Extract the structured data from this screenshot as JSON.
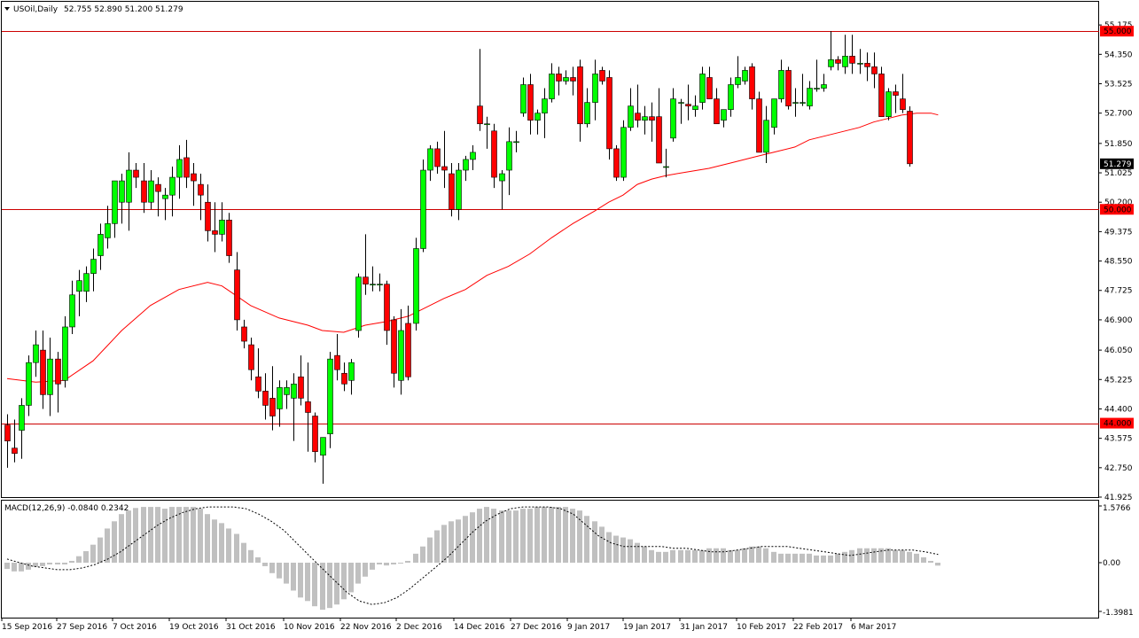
{
  "header": {
    "symbol_label": "USOil,Daily",
    "ohlc_label": "52.755 52.890 51.200 51.279"
  },
  "macd": {
    "label": "MACD(12,26,9) -0.0840 0.2342",
    "axis_labels": [
      "1.5766",
      "0.00",
      "-1.3981"
    ],
    "ylim": [
      -1.3981,
      1.5766
    ]
  },
  "colors": {
    "bull": "#00ff00",
    "bear": "#ff0000",
    "wick": "#000000",
    "ma": "#ff0000",
    "level_line": "#cc0000",
    "hist": "#c0c0c0",
    "signal": "#000000"
  },
  "chart_data": {
    "type": "candlestick",
    "timeframe": "Daily",
    "symbol": "USOil",
    "ylim": [
      41.925,
      55.825
    ],
    "y_ticks": [
      "55.175",
      "54.350",
      "53.525",
      "52.700",
      "51.850",
      "51.025",
      "50.200",
      "49.375",
      "48.550",
      "47.725",
      "46.900",
      "46.050",
      "45.225",
      "44.400",
      "43.575",
      "42.750",
      "41.925"
    ],
    "x_ticks": [
      "15 Sep 2016",
      "27 Sep 2016",
      "7 Oct 2016",
      "19 Oct 2016",
      "31 Oct 2016",
      "10 Nov 2016",
      "22 Nov 2016",
      "2 Dec 2016",
      "14 Dec 2016",
      "27 Dec 2016",
      "9 Jan 2017",
      "19 Jan 2017",
      "31 Jan 2017",
      "10 Feb 2017",
      "22 Feb 2017",
      "6 Mar 2017"
    ],
    "levels": [
      {
        "value": 55.0,
        "label": "55.000"
      },
      {
        "value": 50.0,
        "label": "50.000"
      },
      {
        "value": 44.0,
        "label": "44.000"
      }
    ],
    "last_price": {
      "value": 51.279,
      "label": "51.279"
    },
    "candles": [
      {
        "o": 43.95,
        "h": 44.25,
        "l": 42.75,
        "c": 43.5
      },
      {
        "o": 43.3,
        "h": 44.1,
        "l": 42.9,
        "c": 43.15
      },
      {
        "o": 43.8,
        "h": 44.7,
        "l": 43.0,
        "c": 44.5
      },
      {
        "o": 44.5,
        "h": 45.9,
        "l": 44.2,
        "c": 45.7
      },
      {
        "o": 45.7,
        "h": 46.6,
        "l": 45.3,
        "c": 46.2
      },
      {
        "o": 46.05,
        "h": 46.6,
        "l": 44.4,
        "c": 44.8
      },
      {
        "o": 44.8,
        "h": 46.4,
        "l": 44.2,
        "c": 45.8
      },
      {
        "o": 45.8,
        "h": 46.0,
        "l": 44.3,
        "c": 45.1
      },
      {
        "o": 45.2,
        "h": 47.0,
        "l": 45.0,
        "c": 46.7
      },
      {
        "o": 46.7,
        "h": 48.0,
        "l": 46.5,
        "c": 47.6
      },
      {
        "o": 47.7,
        "h": 48.3,
        "l": 47.0,
        "c": 48.0
      },
      {
        "o": 47.7,
        "h": 48.4,
        "l": 47.4,
        "c": 48.2
      },
      {
        "o": 48.2,
        "h": 48.9,
        "l": 47.7,
        "c": 48.6
      },
      {
        "o": 48.7,
        "h": 49.6,
        "l": 48.3,
        "c": 49.3
      },
      {
        "o": 49.2,
        "h": 50.1,
        "l": 48.9,
        "c": 49.6
      },
      {
        "o": 49.6,
        "h": 50.8,
        "l": 49.2,
        "c": 50.8
      },
      {
        "o": 50.2,
        "h": 51.0,
        "l": 49.6,
        "c": 50.8
      },
      {
        "o": 50.2,
        "h": 51.6,
        "l": 49.4,
        "c": 51.1
      },
      {
        "o": 51.1,
        "h": 51.3,
        "l": 50.6,
        "c": 50.9
      },
      {
        "o": 50.8,
        "h": 51.3,
        "l": 49.9,
        "c": 50.2
      },
      {
        "o": 50.2,
        "h": 51.1,
        "l": 50.0,
        "c": 50.8
      },
      {
        "o": 50.7,
        "h": 50.9,
        "l": 49.8,
        "c": 50.5
      },
      {
        "o": 50.3,
        "h": 50.6,
        "l": 49.7,
        "c": 50.4
      },
      {
        "o": 50.4,
        "h": 51.2,
        "l": 49.8,
        "c": 50.9
      },
      {
        "o": 50.9,
        "h": 51.8,
        "l": 50.3,
        "c": 51.4
      },
      {
        "o": 51.45,
        "h": 51.95,
        "l": 50.6,
        "c": 50.9
      },
      {
        "o": 51.0,
        "h": 51.3,
        "l": 50.1,
        "c": 50.8
      },
      {
        "o": 50.7,
        "h": 51.0,
        "l": 49.7,
        "c": 50.4
      },
      {
        "o": 50.2,
        "h": 50.7,
        "l": 49.1,
        "c": 49.4
      },
      {
        "o": 49.4,
        "h": 50.2,
        "l": 48.8,
        "c": 49.3
      },
      {
        "o": 49.3,
        "h": 50.2,
        "l": 49.1,
        "c": 49.7
      },
      {
        "o": 49.7,
        "h": 49.9,
        "l": 48.5,
        "c": 48.7
      },
      {
        "o": 48.3,
        "h": 48.8,
        "l": 46.6,
        "c": 46.9
      },
      {
        "o": 46.7,
        "h": 46.9,
        "l": 46.1,
        "c": 46.3
      },
      {
        "o": 46.2,
        "h": 46.4,
        "l": 45.2,
        "c": 45.5
      },
      {
        "o": 45.3,
        "h": 46.1,
        "l": 44.7,
        "c": 44.9
      },
      {
        "o": 44.9,
        "h": 45.4,
        "l": 44.1,
        "c": 44.5
      },
      {
        "o": 44.7,
        "h": 45.6,
        "l": 43.8,
        "c": 44.2
      },
      {
        "o": 44.4,
        "h": 45.2,
        "l": 43.9,
        "c": 45.0
      },
      {
        "o": 44.8,
        "h": 45.2,
        "l": 44.4,
        "c": 45.0
      },
      {
        "o": 44.7,
        "h": 45.4,
        "l": 43.5,
        "c": 45.1
      },
      {
        "o": 45.3,
        "h": 45.9,
        "l": 44.5,
        "c": 44.7
      },
      {
        "o": 44.6,
        "h": 45.7,
        "l": 43.2,
        "c": 44.3
      },
      {
        "o": 44.2,
        "h": 44.3,
        "l": 42.9,
        "c": 43.2
      },
      {
        "o": 43.1,
        "h": 43.6,
        "l": 42.3,
        "c": 43.6
      },
      {
        "o": 43.7,
        "h": 46.0,
        "l": 43.3,
        "c": 45.8
      },
      {
        "o": 45.9,
        "h": 46.5,
        "l": 45.2,
        "c": 45.5
      },
      {
        "o": 45.4,
        "h": 45.7,
        "l": 44.9,
        "c": 45.1
      },
      {
        "o": 45.2,
        "h": 45.8,
        "l": 44.8,
        "c": 45.7
      },
      {
        "o": 46.6,
        "h": 48.2,
        "l": 46.4,
        "c": 48.1
      },
      {
        "o": 48.1,
        "h": 49.3,
        "l": 47.6,
        "c": 47.9
      },
      {
        "o": 47.9,
        "h": 48.4,
        "l": 47.7,
        "c": 47.9
      },
      {
        "o": 47.9,
        "h": 48.2,
        "l": 47.7,
        "c": 47.9
      },
      {
        "o": 47.9,
        "h": 48.0,
        "l": 46.2,
        "c": 46.6
      },
      {
        "o": 46.9,
        "h": 47.0,
        "l": 45.0,
        "c": 45.4
      },
      {
        "o": 45.2,
        "h": 47.2,
        "l": 44.8,
        "c": 46.6
      },
      {
        "o": 46.8,
        "h": 47.3,
        "l": 45.2,
        "c": 45.3
      },
      {
        "o": 46.8,
        "h": 49.2,
        "l": 46.6,
        "c": 48.9
      },
      {
        "o": 48.9,
        "h": 51.4,
        "l": 48.8,
        "c": 51.1
      },
      {
        "o": 51.1,
        "h": 51.8,
        "l": 50.8,
        "c": 51.7
      },
      {
        "o": 51.7,
        "h": 51.9,
        "l": 51.0,
        "c": 51.2
      },
      {
        "o": 51.2,
        "h": 52.2,
        "l": 50.6,
        "c": 51.1
      },
      {
        "o": 51.0,
        "h": 51.3,
        "l": 49.8,
        "c": 50.0
      },
      {
        "o": 50.0,
        "h": 51.3,
        "l": 49.7,
        "c": 51.1
      },
      {
        "o": 51.1,
        "h": 51.5,
        "l": 50.8,
        "c": 51.4
      },
      {
        "o": 51.4,
        "h": 51.8,
        "l": 51.1,
        "c": 51.6
      },
      {
        "o": 52.9,
        "h": 54.5,
        "l": 52.2,
        "c": 52.4
      },
      {
        "o": 52.4,
        "h": 52.6,
        "l": 51.7,
        "c": 52.4
      },
      {
        "o": 52.2,
        "h": 52.4,
        "l": 50.6,
        "c": 50.9
      },
      {
        "o": 50.8,
        "h": 51.1,
        "l": 50.0,
        "c": 51.0
      },
      {
        "o": 51.1,
        "h": 52.3,
        "l": 50.4,
        "c": 51.9
      },
      {
        "o": 51.9,
        "h": 52.2,
        "l": 51.6,
        "c": 51.9
      },
      {
        "o": 52.7,
        "h": 53.7,
        "l": 52.6,
        "c": 53.5
      },
      {
        "o": 53.5,
        "h": 53.8,
        "l": 52.1,
        "c": 52.5
      },
      {
        "o": 52.5,
        "h": 52.8,
        "l": 52.1,
        "c": 52.7
      },
      {
        "o": 52.7,
        "h": 53.4,
        "l": 52.0,
        "c": 53.1
      },
      {
        "o": 53.1,
        "h": 54.1,
        "l": 53.0,
        "c": 53.8
      },
      {
        "o": 53.8,
        "h": 54.0,
        "l": 53.2,
        "c": 53.6
      },
      {
        "o": 53.6,
        "h": 53.9,
        "l": 53.5,
        "c": 53.7
      },
      {
        "o": 53.7,
        "h": 54.0,
        "l": 53.2,
        "c": 53.6
      },
      {
        "o": 54.0,
        "h": 54.2,
        "l": 51.9,
        "c": 52.4
      },
      {
        "o": 52.4,
        "h": 53.4,
        "l": 52.3,
        "c": 53.0
      },
      {
        "o": 53.0,
        "h": 54.2,
        "l": 52.5,
        "c": 53.8
      },
      {
        "o": 53.9,
        "h": 54.0,
        "l": 53.5,
        "c": 53.6
      },
      {
        "o": 53.7,
        "h": 53.9,
        "l": 51.4,
        "c": 51.7
      },
      {
        "o": 51.7,
        "h": 51.8,
        "l": 50.8,
        "c": 50.9
      },
      {
        "o": 50.9,
        "h": 52.5,
        "l": 50.8,
        "c": 52.3
      },
      {
        "o": 52.3,
        "h": 53.4,
        "l": 52.2,
        "c": 52.9
      },
      {
        "o": 52.7,
        "h": 53.5,
        "l": 52.3,
        "c": 52.5
      },
      {
        "o": 52.5,
        "h": 52.9,
        "l": 52.1,
        "c": 52.6
      },
      {
        "o": 52.6,
        "h": 53.0,
        "l": 51.9,
        "c": 52.5
      },
      {
        "o": 52.6,
        "h": 53.4,
        "l": 51.3,
        "c": 51.3
      },
      {
        "o": 51.2,
        "h": 51.7,
        "l": 50.9,
        "c": 51.2
      },
      {
        "o": 52.0,
        "h": 53.4,
        "l": 51.9,
        "c": 53.1
      },
      {
        "o": 53.0,
        "h": 53.1,
        "l": 52.4,
        "c": 53.0
      },
      {
        "o": 52.95,
        "h": 53.5,
        "l": 52.5,
        "c": 52.9
      },
      {
        "o": 52.8,
        "h": 53.2,
        "l": 52.6,
        "c": 52.9
      },
      {
        "o": 53.0,
        "h": 54.0,
        "l": 52.8,
        "c": 53.8
      },
      {
        "o": 53.7,
        "h": 54.0,
        "l": 53.1,
        "c": 53.1
      },
      {
        "o": 53.1,
        "h": 53.4,
        "l": 52.4,
        "c": 52.4
      },
      {
        "o": 52.5,
        "h": 52.8,
        "l": 52.3,
        "c": 52.8
      },
      {
        "o": 52.8,
        "h": 53.7,
        "l": 52.6,
        "c": 53.5
      },
      {
        "o": 53.5,
        "h": 54.3,
        "l": 53.4,
        "c": 53.7
      },
      {
        "o": 53.6,
        "h": 54.0,
        "l": 53.5,
        "c": 53.9
      },
      {
        "o": 54.0,
        "h": 54.1,
        "l": 52.8,
        "c": 53.1
      },
      {
        "o": 53.1,
        "h": 53.3,
        "l": 51.6,
        "c": 51.6
      },
      {
        "o": 51.6,
        "h": 52.9,
        "l": 51.3,
        "c": 52.5
      },
      {
        "o": 52.3,
        "h": 53.1,
        "l": 52.1,
        "c": 53.1
      },
      {
        "o": 53.1,
        "h": 54.2,
        "l": 53.0,
        "c": 53.9
      },
      {
        "o": 53.9,
        "h": 54.0,
        "l": 52.8,
        "c": 52.9
      },
      {
        "o": 53.0,
        "h": 53.4,
        "l": 52.6,
        "c": 53.0
      },
      {
        "o": 53.0,
        "h": 53.8,
        "l": 52.9,
        "c": 53.0
      },
      {
        "o": 52.9,
        "h": 53.6,
        "l": 52.8,
        "c": 53.4
      },
      {
        "o": 53.4,
        "h": 54.2,
        "l": 53.3,
        "c": 53.4
      },
      {
        "o": 53.4,
        "h": 53.8,
        "l": 53.3,
        "c": 53.5
      },
      {
        "o": 54.0,
        "h": 55.0,
        "l": 53.9,
        "c": 54.2
      },
      {
        "o": 54.2,
        "h": 54.3,
        "l": 53.9,
        "c": 54.1
      },
      {
        "o": 54.0,
        "h": 54.9,
        "l": 53.8,
        "c": 54.3
      },
      {
        "o": 54.3,
        "h": 54.9,
        "l": 53.8,
        "c": 54.1
      },
      {
        "o": 54.1,
        "h": 54.5,
        "l": 53.8,
        "c": 54.1
      },
      {
        "o": 54.1,
        "h": 54.4,
        "l": 53.6,
        "c": 54.0
      },
      {
        "o": 54.0,
        "h": 54.4,
        "l": 53.4,
        "c": 53.8
      },
      {
        "o": 53.8,
        "h": 54.0,
        "l": 52.6,
        "c": 52.6
      },
      {
        "o": 52.6,
        "h": 53.4,
        "l": 52.5,
        "c": 53.3
      },
      {
        "o": 53.3,
        "h": 53.5,
        "l": 52.7,
        "c": 53.2
      },
      {
        "o": 53.1,
        "h": 53.8,
        "l": 52.7,
        "c": 52.8
      },
      {
        "o": 52.755,
        "h": 52.89,
        "l": 51.2,
        "c": 51.279
      }
    ],
    "ma": {
      "period_label": "",
      "points": [
        [
          0,
          45.25
        ],
        [
          4,
          45.15
        ],
        [
          8,
          45.2
        ],
        [
          12,
          45.75
        ],
        [
          16,
          46.6
        ],
        [
          20,
          47.3
        ],
        [
          24,
          47.75
        ],
        [
          28,
          47.95
        ],
        [
          30,
          47.85
        ],
        [
          34,
          47.3
        ],
        [
          38,
          46.95
        ],
        [
          42,
          46.75
        ],
        [
          44,
          46.6
        ],
        [
          47,
          46.55
        ],
        [
          50,
          46.75
        ],
        [
          53,
          46.85
        ],
        [
          56,
          47.0
        ],
        [
          58,
          47.2
        ],
        [
          61,
          47.5
        ],
        [
          64,
          47.75
        ],
        [
          67,
          48.15
        ],
        [
          70,
          48.4
        ],
        [
          73,
          48.75
        ],
        [
          76,
          49.2
        ],
        [
          79,
          49.6
        ],
        [
          82,
          49.95
        ],
        [
          84,
          50.2
        ],
        [
          86,
          50.4
        ],
        [
          88,
          50.7
        ],
        [
          90,
          50.85
        ],
        [
          92,
          50.95
        ],
        [
          95,
          51.05
        ],
        [
          98,
          51.15
        ],
        [
          101,
          51.3
        ],
        [
          104,
          51.45
        ],
        [
          107,
          51.6
        ],
        [
          110,
          51.75
        ],
        [
          112,
          51.95
        ],
        [
          114,
          52.05
        ],
        [
          117,
          52.2
        ],
        [
          119,
          52.3
        ],
        [
          121,
          52.45
        ],
        [
          123,
          52.55
        ],
        [
          125,
          52.65
        ],
        [
          127,
          52.7
        ],
        [
          129,
          52.7
        ],
        [
          130,
          52.65
        ]
      ]
    },
    "macd": {
      "hist": [
        -0.18,
        -0.25,
        -0.25,
        -0.2,
        -0.12,
        -0.1,
        -0.05,
        -0.05,
        -0.05,
        0.05,
        0.18,
        0.32,
        0.5,
        0.7,
        0.95,
        1.15,
        1.35,
        1.45,
        1.52,
        1.55,
        1.55,
        1.55,
        1.5,
        1.55,
        1.55,
        1.55,
        1.55,
        1.5,
        1.35,
        1.2,
        1.1,
        0.95,
        0.8,
        0.55,
        0.35,
        0.15,
        -0.1,
        -0.3,
        -0.45,
        -0.6,
        -0.8,
        -1.0,
        -1.1,
        -1.25,
        -1.35,
        -1.3,
        -1.2,
        -1.05,
        -0.85,
        -0.6,
        -0.4,
        -0.2,
        -0.05,
        -0.08,
        -0.05,
        -0.02,
        0.05,
        0.25,
        0.45,
        0.7,
        0.9,
        1.05,
        1.15,
        1.2,
        1.3,
        1.4,
        1.5,
        1.55,
        1.5,
        1.45,
        1.45,
        1.45,
        1.5,
        1.5,
        1.55,
        1.55,
        1.55,
        1.55,
        1.55,
        1.5,
        1.45,
        1.3,
        1.15,
        1.0,
        0.85,
        0.75,
        0.7,
        0.65,
        0.55,
        0.45,
        0.35,
        0.3,
        0.3,
        0.35,
        0.35,
        0.35,
        0.35,
        0.35,
        0.4,
        0.4,
        0.4,
        0.35,
        0.35,
        0.4,
        0.45,
        0.45,
        0.4,
        0.3,
        0.25,
        0.25,
        0.25,
        0.25,
        0.25,
        0.2,
        0.2,
        0.2,
        0.25,
        0.3,
        0.35,
        0.4,
        0.4,
        0.4,
        0.4,
        0.4,
        0.35,
        0.35,
        0.3,
        0.25,
        0.15,
        0.05,
        -0.084
      ],
      "signal": [
        0.1,
        0.0,
        -0.1,
        -0.15,
        -0.2,
        -0.2,
        -0.15,
        -0.05,
        0.1,
        0.3,
        0.55,
        0.8,
        1.05,
        1.25,
        1.4,
        1.5,
        1.55,
        1.55,
        1.55,
        1.5,
        1.35,
        1.15,
        0.9,
        0.55,
        0.2,
        -0.15,
        -0.5,
        -0.85,
        -1.1,
        -1.2,
        -1.15,
        -1.0,
        -0.75,
        -0.45,
        -0.15,
        0.15,
        0.5,
        0.85,
        1.15,
        1.35,
        1.5,
        1.55,
        1.55,
        1.55,
        1.5,
        1.35,
        1.05,
        0.75,
        0.55,
        0.45,
        0.45,
        0.45,
        0.45,
        0.4,
        0.4,
        0.35,
        0.3,
        0.3,
        0.35,
        0.4,
        0.45,
        0.45,
        0.45,
        0.4,
        0.35,
        0.3,
        0.25,
        0.2,
        0.25,
        0.3,
        0.35,
        0.35,
        0.35,
        0.3,
        0.23
      ]
    }
  }
}
